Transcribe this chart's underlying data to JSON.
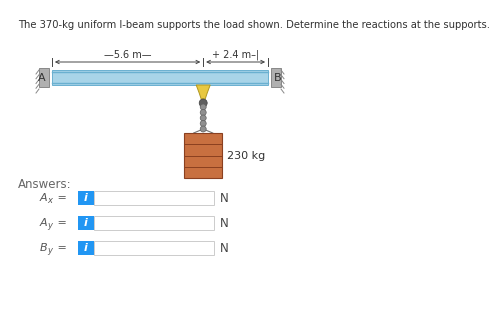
{
  "title": "The 370-kg uniform I-beam supports the load shown. Determine the reactions at the supports.",
  "title_fontsize": 7.5,
  "beam_color": "#a8d4e8",
  "beam_color_dark": "#6ab0d0",
  "support_color": "#b0b0b0",
  "support_edge": "#888888",
  "dim_56": "-5.6 m—",
  "dim_24": "+ 2.4 m–|",
  "load_label": "230 kg",
  "label_A": "A",
  "label_B": "B",
  "answer_labels": [
    "A",
    "A",
    "B"
  ],
  "answer_subs": [
    "x",
    "y",
    "y"
  ],
  "unit_label": "N",
  "box_color": "#2196F3",
  "box_border": "#cccccc",
  "answers_title": "Answers:",
  "background": "#ffffff",
  "hook_color": "#e8c840",
  "hook_edge": "#b09820",
  "rope_color": "#808080",
  "barrel_color": "#c87040",
  "barrel_edge": "#8b4020"
}
